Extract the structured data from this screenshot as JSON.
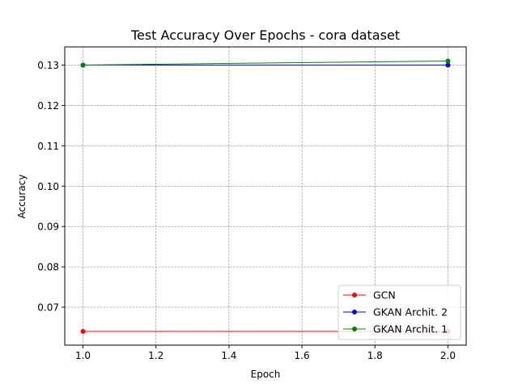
{
  "chart_data": {
    "type": "line",
    "title": "Test Accuracy Over Epochs - cora dataset",
    "xlabel": "Epoch",
    "ylabel": "Accuracy",
    "xlim": [
      0.95,
      2.05
    ],
    "ylim": [
      0.0606,
      0.1345
    ],
    "xticks": [
      1.0,
      1.2,
      1.4,
      1.6,
      1.8,
      2.0
    ],
    "xtick_labels": [
      "1.0",
      "1.2",
      "1.4",
      "1.6",
      "1.8",
      "2.0"
    ],
    "yticks": [
      0.07,
      0.08,
      0.09,
      0.1,
      0.11,
      0.12,
      0.13
    ],
    "ytick_labels": [
      "0.07",
      "0.08",
      "0.09",
      "0.10",
      "0.11",
      "0.12",
      "0.13"
    ],
    "grid": true,
    "legend_position": "bottom-right",
    "series": [
      {
        "name": "GCN",
        "color": "#ff0000",
        "x": [
          1,
          2
        ],
        "y": [
          0.064,
          0.064
        ]
      },
      {
        "name": "GKAN Archit. 2",
        "color": "#0000ff",
        "x": [
          1,
          2
        ],
        "y": [
          0.13,
          0.13
        ]
      },
      {
        "name": "GKAN Archit. 1",
        "color": "#008000",
        "x": [
          1,
          2
        ],
        "y": [
          0.13,
          0.131
        ]
      }
    ]
  }
}
